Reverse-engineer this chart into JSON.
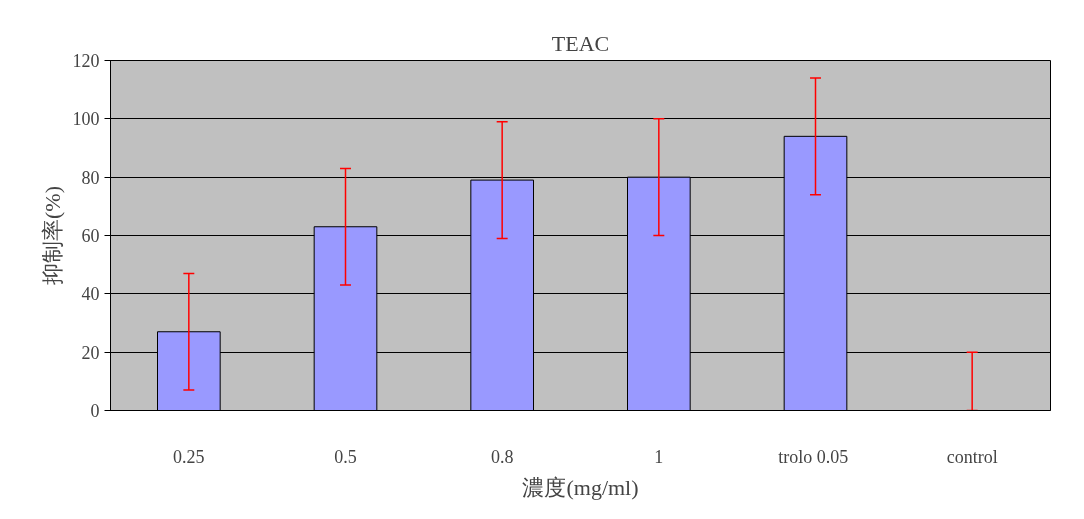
{
  "chart_data": {
    "type": "bar",
    "title": "TEAC",
    "xlabel": "濃度(mg/ml)",
    "ylabel": "抑制率(%)",
    "categories": [
      "0.25",
      "0.5",
      "0.8",
      "1",
      "trolo  0.05",
      "control"
    ],
    "values": [
      27,
      63,
      79,
      80,
      94,
      0
    ],
    "errors": [
      20,
      20,
      20,
      20,
      20,
      [
        0,
        20
      ]
    ],
    "color": "#9999ff",
    "ylim": [
      0,
      120
    ],
    "yticks": [
      0,
      20,
      40,
      60,
      80,
      100,
      120
    ],
    "grid": "y"
  }
}
